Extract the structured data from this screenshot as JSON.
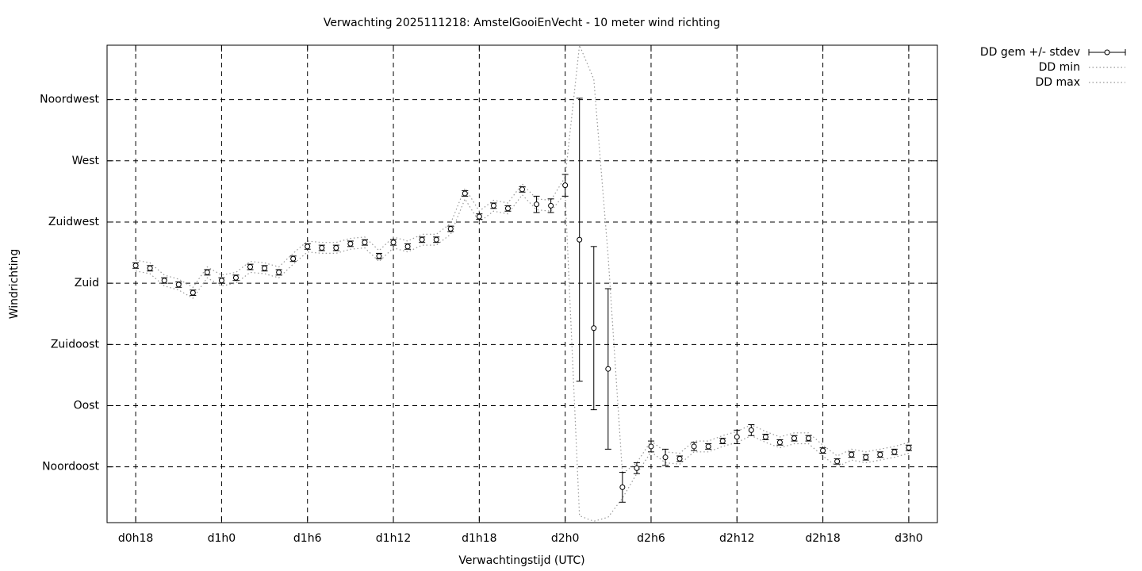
{
  "chart_data": {
    "type": "errorbar_line",
    "title": "Verwachting 2025111218: AmstelGooiEnVecht - 10 meter wind richting",
    "xlabel": "Verwachtingstijd (UTC)",
    "ylabel": "Windrichting",
    "xlim": [
      16,
      74
    ],
    "ylim": [
      4,
      355
    ],
    "xticks": [
      {
        "value": 18,
        "label": "d0h18"
      },
      {
        "value": 24,
        "label": "d1h0"
      },
      {
        "value": 30,
        "label": "d1h6"
      },
      {
        "value": 36,
        "label": "d1h12"
      },
      {
        "value": 42,
        "label": "d1h18"
      },
      {
        "value": 48,
        "label": "d2h0"
      },
      {
        "value": 54,
        "label": "d2h6"
      },
      {
        "value": 60,
        "label": "d2h12"
      },
      {
        "value": 66,
        "label": "d2h18"
      },
      {
        "value": 72,
        "label": "d3h0"
      }
    ],
    "yticks": [
      {
        "value": 45,
        "label": "Noordoost"
      },
      {
        "value": 90,
        "label": "Oost"
      },
      {
        "value": 135,
        "label": "Zuidoost"
      },
      {
        "value": 180,
        "label": "Zuid"
      },
      {
        "value": 225,
        "label": "Zuidwest"
      },
      {
        "value": 270,
        "label": "West"
      },
      {
        "value": 315,
        "label": "Noordwest"
      }
    ],
    "grid": true,
    "legend": "outside-top-right",
    "x": [
      18,
      19,
      20,
      21,
      22,
      23,
      24,
      25,
      26,
      27,
      28,
      29,
      30,
      31,
      32,
      33,
      34,
      35,
      36,
      37,
      38,
      39,
      40,
      41,
      42,
      43,
      44,
      45,
      46,
      47,
      48,
      49,
      50,
      51,
      52,
      53,
      54,
      55,
      56,
      57,
      58,
      59,
      60,
      61,
      62,
      63,
      64,
      65,
      66,
      67,
      68,
      69,
      70,
      71,
      72
    ],
    "series": [
      {
        "name": "DD gem +/- stdev",
        "color": "#000000",
        "values": [
          193,
          191,
          182,
          179,
          173,
          188,
          182,
          184,
          192,
          191,
          188,
          198,
          207,
          206,
          206,
          209,
          210,
          200,
          210,
          207,
          212,
          212,
          220,
          246,
          229,
          237,
          235,
          249,
          238,
          237,
          252,
          212,
          147,
          117,
          30,
          44,
          60,
          52,
          51,
          60,
          60,
          64,
          67,
          72,
          67,
          63,
          66,
          66,
          57,
          49,
          54,
          52,
          54,
          56,
          59
        ],
        "errors": [
          2,
          2,
          2,
          2,
          2,
          2,
          2,
          2,
          2,
          2,
          2,
          2,
          2,
          2,
          2,
          2,
          2,
          2,
          2,
          2,
          2,
          2,
          2,
          2,
          2,
          2,
          2,
          2,
          6,
          5,
          8,
          104,
          60,
          59,
          11,
          4,
          4,
          6,
          2,
          3,
          2,
          2,
          5,
          4,
          2,
          2,
          2,
          2,
          2,
          2,
          2,
          2,
          2,
          2,
          2
        ]
      },
      {
        "name": "DD min",
        "color": "#999999",
        "values": [
          189,
          187,
          178,
          175,
          169,
          184,
          178,
          180,
          188,
          187,
          184,
          194,
          203,
          202,
          202,
          205,
          206,
          196,
          206,
          203,
          208,
          208,
          216,
          242,
          225,
          233,
          231,
          245,
          234,
          233,
          246,
          9,
          5,
          8,
          22,
          40,
          56,
          48,
          47,
          56,
          56,
          60,
          63,
          68,
          63,
          59,
          62,
          62,
          53,
          45,
          50,
          48,
          50,
          52,
          55
        ]
      },
      {
        "name": "DD max",
        "color": "#999999",
        "values": [
          197,
          195,
          186,
          183,
          177,
          192,
          186,
          188,
          196,
          195,
          192,
          202,
          211,
          210,
          210,
          213,
          214,
          204,
          214,
          211,
          216,
          216,
          224,
          250,
          233,
          241,
          239,
          253,
          242,
          241,
          258,
          355,
          330,
          200,
          40,
          48,
          64,
          56,
          55,
          64,
          64,
          68,
          71,
          76,
          71,
          67,
          70,
          70,
          61,
          53,
          58,
          56,
          58,
          60,
          63
        ]
      }
    ]
  }
}
